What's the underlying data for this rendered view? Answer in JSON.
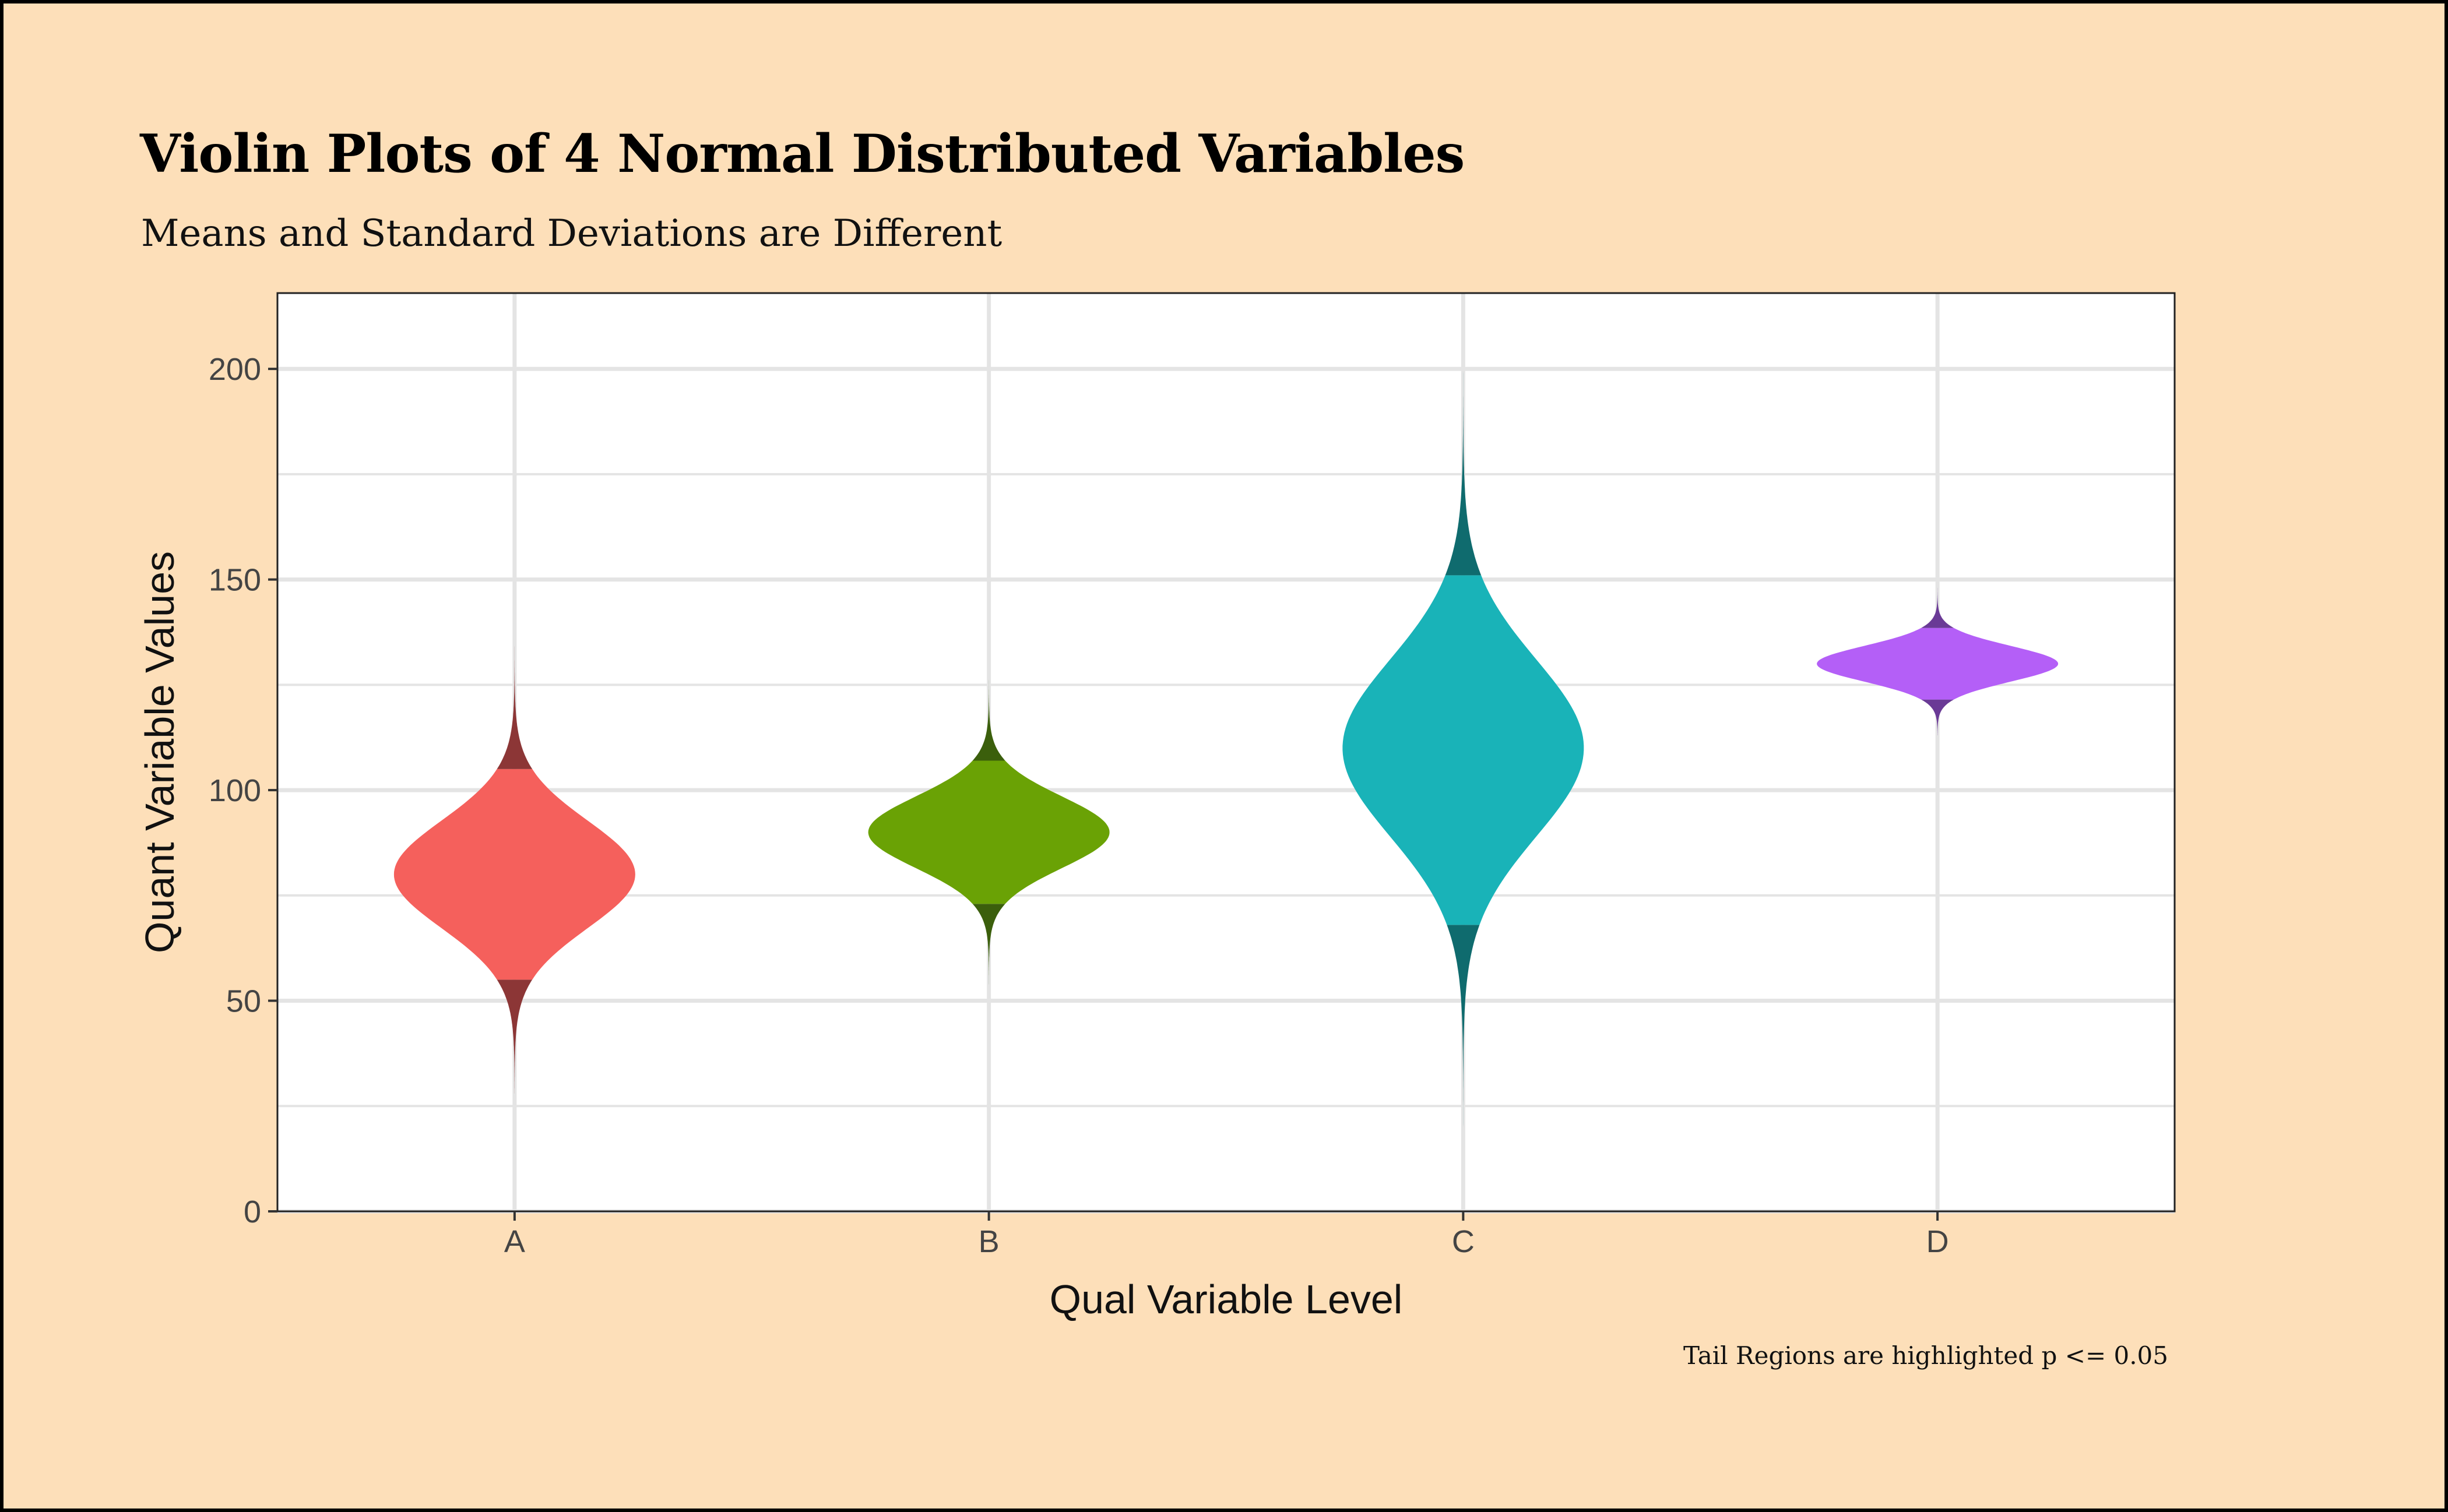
{
  "title": "Violin Plots of 4 Normal Distributed Variables",
  "subtitle": "Means and Standard Deviations are Different",
  "caption": "Tail Regions are highlighted p <= 0.05",
  "chart_data": {
    "type": "violin",
    "xlabel": "Qual Variable Level",
    "ylabel": "Quant Variable Values",
    "ylim": [
      0,
      218
    ],
    "yticks": [
      0,
      50,
      100,
      150,
      200
    ],
    "yminor": [
      25,
      75,
      125,
      175
    ],
    "categories": [
      "A",
      "B",
      "C",
      "D"
    ],
    "series": [
      {
        "name": "A",
        "mean": 80,
        "sd": 12.75,
        "min": 28,
        "max": 138,
        "tail_low": 55,
        "tail_high": 105,
        "color": "#f5605c",
        "tail_color": "#8c3636"
      },
      {
        "name": "B",
        "mean": 90,
        "sd": 8.5,
        "min": 51,
        "max": 127,
        "tail_low": 73,
        "tail_high": 107,
        "color": "#6aa205",
        "tail_color": "#3b5f0c"
      },
      {
        "name": "C",
        "mean": 110,
        "sd": 21,
        "min": 3,
        "max": 202,
        "tail_low": 68,
        "tail_high": 151,
        "color": "#19b3b8",
        "tail_color": "#0f6b6e"
      },
      {
        "name": "D",
        "mean": 130,
        "sd": 4.25,
        "min": 113,
        "max": 149,
        "tail_low": 121.5,
        "tail_high": 138.5,
        "color": "#b45ff7",
        "tail_color": "#6a3a96"
      }
    ],
    "grid": true,
    "panel_background": "#ffffff",
    "grid_color": "#e4e4e4"
  }
}
